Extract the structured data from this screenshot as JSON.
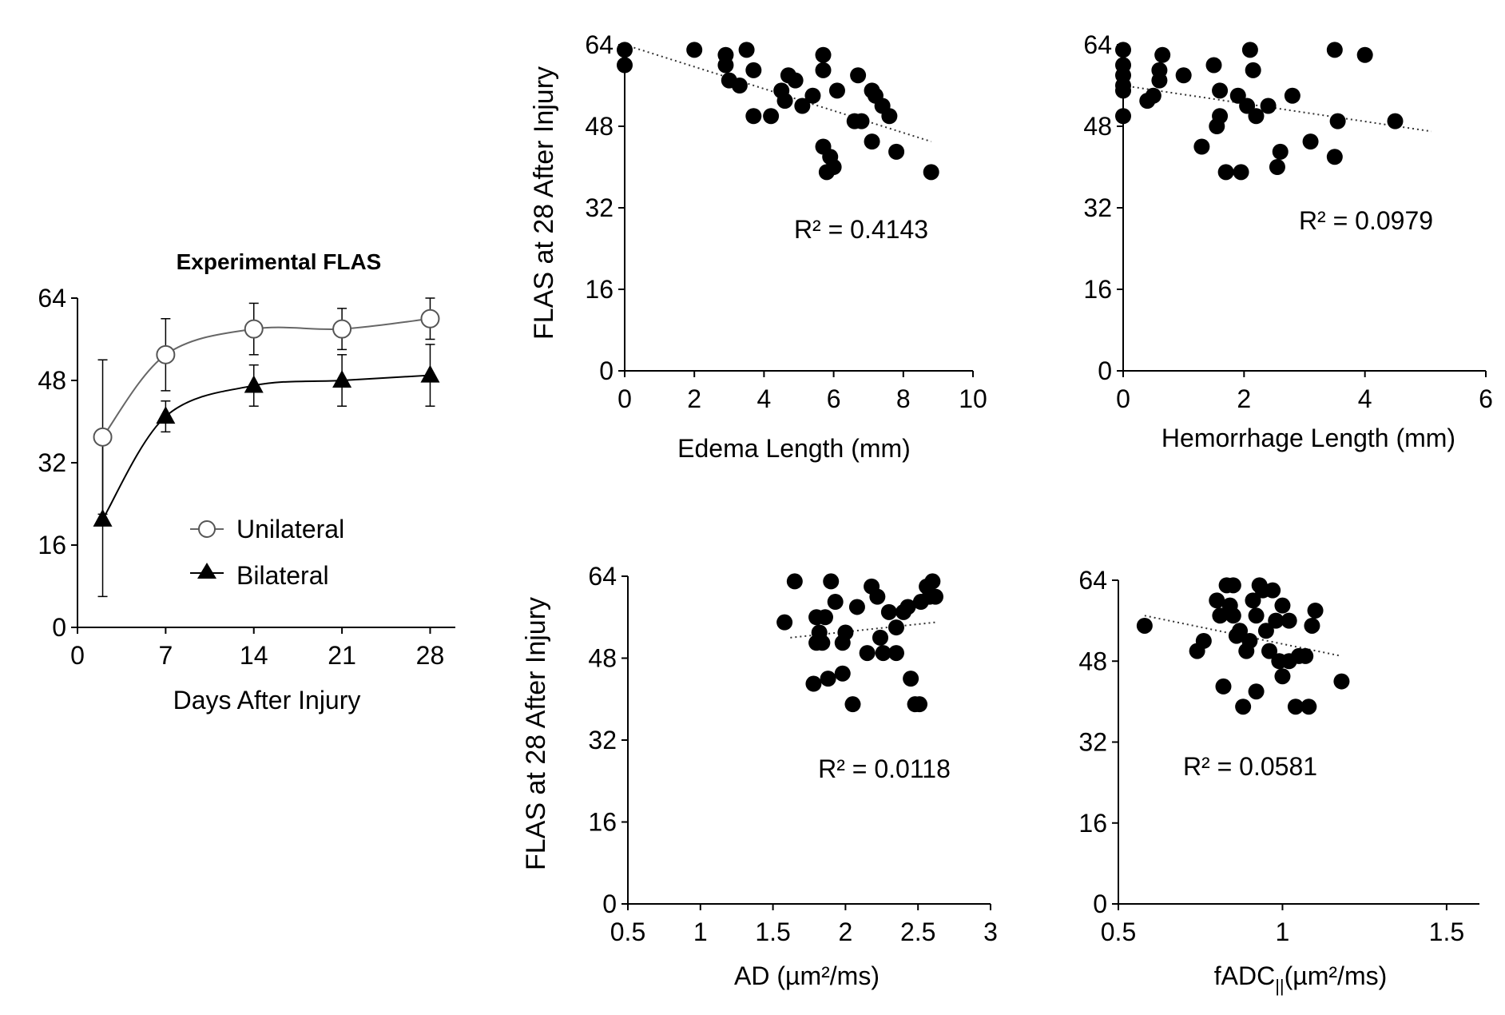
{
  "chart_data": [
    {
      "id": "flas",
      "type": "line",
      "title": "Experimental FLAS",
      "xlabel": "Days After Injury",
      "ylabel": "",
      "xlim": [
        0,
        30
      ],
      "ylim": [
        0,
        64
      ],
      "xticks": [
        0,
        7,
        14,
        21,
        28
      ],
      "yticks": [
        0,
        16,
        32,
        48,
        64
      ],
      "series": [
        {
          "name": "Unilateral",
          "marker": "circle-open",
          "x": [
            2,
            7,
            14,
            21,
            28
          ],
          "values": [
            37,
            53,
            58,
            58,
            60
          ],
          "err_up": [
            15,
            7,
            5,
            4,
            4
          ],
          "err_down": [
            15,
            7,
            5,
            4,
            4
          ]
        },
        {
          "name": "Bilateral",
          "marker": "triangle-filled",
          "x": [
            2,
            7,
            14,
            21,
            28
          ],
          "values": [
            21,
            41,
            47,
            48,
            49
          ],
          "err_up": [
            15,
            3,
            4,
            5,
            6
          ],
          "err_down": [
            15,
            3,
            4,
            5,
            6
          ]
        }
      ]
    },
    {
      "id": "edema",
      "type": "scatter",
      "title": "",
      "xlabel": "Edema Length (mm)",
      "ylabel": "FLAS at 28 After Injury",
      "xlim": [
        0,
        10
      ],
      "ylim": [
        0,
        64
      ],
      "xticks": [
        0,
        2,
        4,
        6,
        8,
        10
      ],
      "yticks": [
        0,
        16,
        32,
        48,
        64
      ],
      "r2": "R² = 0.4143",
      "trendline": {
        "x": [
          0,
          8.8
        ],
        "y": [
          64,
          45
        ]
      },
      "points": [
        [
          0,
          63
        ],
        [
          0,
          60
        ],
        [
          2,
          63
        ],
        [
          2.9,
          62
        ],
        [
          2.9,
          60
        ],
        [
          3,
          57
        ],
        [
          3.3,
          56
        ],
        [
          3.5,
          63
        ],
        [
          3.7,
          59
        ],
        [
          3.7,
          50
        ],
        [
          4.2,
          50
        ],
        [
          4.5,
          55
        ],
        [
          4.6,
          53
        ],
        [
          4.7,
          58
        ],
        [
          4.9,
          57
        ],
        [
          5.1,
          52
        ],
        [
          5.4,
          54
        ],
        [
          5.7,
          62
        ],
        [
          5.7,
          59
        ],
        [
          5.7,
          44
        ],
        [
          5.8,
          39
        ],
        [
          5.9,
          42
        ],
        [
          6,
          40
        ],
        [
          6.1,
          55
        ],
        [
          6.6,
          49
        ],
        [
          6.7,
          58
        ],
        [
          6.8,
          49
        ],
        [
          7.1,
          45
        ],
        [
          7.1,
          55
        ],
        [
          7.2,
          54
        ],
        [
          7.4,
          52
        ],
        [
          7.6,
          50
        ],
        [
          7.8,
          43
        ],
        [
          8.8,
          39
        ]
      ]
    },
    {
      "id": "hemorrhage",
      "type": "scatter",
      "title": "",
      "xlabel": "Hemorrhage Length (mm)",
      "ylabel": "",
      "xlim": [
        0,
        6
      ],
      "ylim": [
        0,
        64
      ],
      "xticks": [
        0,
        2,
        4,
        6
      ],
      "yticks": [
        0,
        16,
        32,
        48,
        64
      ],
      "r2": "R² = 0.0979",
      "trendline": {
        "x": [
          0,
          5.1
        ],
        "y": [
          56,
          47
        ]
      },
      "points": [
        [
          0,
          63
        ],
        [
          0,
          60
        ],
        [
          0,
          58
        ],
        [
          0,
          56
        ],
        [
          0,
          55
        ],
        [
          0,
          50
        ],
        [
          0.4,
          53
        ],
        [
          0.5,
          54
        ],
        [
          0.6,
          57
        ],
        [
          0.6,
          59
        ],
        [
          0.65,
          62
        ],
        [
          1,
          58
        ],
        [
          1.3,
          44
        ],
        [
          1.5,
          60
        ],
        [
          1.55,
          48
        ],
        [
          1.6,
          55
        ],
        [
          1.6,
          50
        ],
        [
          1.7,
          39
        ],
        [
          1.9,
          54
        ],
        [
          1.95,
          39
        ],
        [
          2.05,
          52
        ],
        [
          2.1,
          63
        ],
        [
          2.15,
          59
        ],
        [
          2.2,
          50
        ],
        [
          2.4,
          52
        ],
        [
          2.55,
          40
        ],
        [
          2.6,
          43
        ],
        [
          2.8,
          54
        ],
        [
          3.1,
          45
        ],
        [
          3.5,
          63
        ],
        [
          3.5,
          42
        ],
        [
          3.55,
          49
        ],
        [
          4,
          62
        ],
        [
          4.5,
          49
        ]
      ]
    },
    {
      "id": "ad",
      "type": "scatter",
      "title": "",
      "xlabel": "AD (µm²/ms)",
      "ylabel": "FLAS at 28 After Injury",
      "xlim": [
        0.5,
        3
      ],
      "ylim": [
        0,
        64
      ],
      "xticks": [
        0.5,
        1,
        1.5,
        2,
        2.5,
        3
      ],
      "xtick_labels": [
        "0.5",
        "1",
        "1.5",
        "2",
        "2.5",
        "3"
      ],
      "yticks": [
        0,
        16,
        32,
        48,
        64
      ],
      "r2": "R² = 0.0118",
      "trendline": {
        "x": [
          1.62,
          2.62
        ],
        "y": [
          52,
          55
        ]
      },
      "points": [
        [
          1.58,
          55
        ],
        [
          1.65,
          63
        ],
        [
          1.78,
          43
        ],
        [
          1.8,
          56
        ],
        [
          1.8,
          51
        ],
        [
          1.82,
          53
        ],
        [
          1.84,
          51
        ],
        [
          1.86,
          56
        ],
        [
          1.88,
          44
        ],
        [
          1.9,
          63
        ],
        [
          1.93,
          59
        ],
        [
          1.98,
          45
        ],
        [
          1.98,
          51
        ],
        [
          2,
          53
        ],
        [
          2.05,
          39
        ],
        [
          2.08,
          58
        ],
        [
          2.15,
          49
        ],
        [
          2.18,
          62
        ],
        [
          2.22,
          60
        ],
        [
          2.24,
          52
        ],
        [
          2.26,
          49
        ],
        [
          2.3,
          57
        ],
        [
          2.35,
          49
        ],
        [
          2.35,
          54
        ],
        [
          2.4,
          57
        ],
        [
          2.43,
          58
        ],
        [
          2.45,
          44
        ],
        [
          2.48,
          39
        ],
        [
          2.51,
          39
        ],
        [
          2.52,
          59
        ],
        [
          2.56,
          62
        ],
        [
          2.6,
          63
        ],
        [
          2.62,
          60
        ],
        [
          2.58,
          60
        ]
      ]
    },
    {
      "id": "fadc",
      "type": "scatter",
      "title": "",
      "xlabel": "fADC||(µm²/ms)",
      "xlabel_main": "fADC",
      "xlabel_sub": "||",
      "xlabel_rest": "(µm²/ms)",
      "ylabel": "",
      "xlim": [
        0.5,
        1.6
      ],
      "ylim": [
        0,
        64
      ],
      "xticks": [
        0.5,
        1,
        1.5
      ],
      "xtick_labels": [
        "0.5",
        "1",
        "1.5"
      ],
      "yticks": [
        0,
        16,
        32,
        48,
        64
      ],
      "r2": "R² = 0.0581",
      "trendline": {
        "x": [
          0.58,
          1.18
        ],
        "y": [
          57,
          49
        ]
      },
      "points": [
        [
          0.58,
          55
        ],
        [
          0.74,
          50
        ],
        [
          0.76,
          52
        ],
        [
          0.8,
          60
        ],
        [
          0.81,
          57
        ],
        [
          0.82,
          43
        ],
        [
          0.83,
          63
        ],
        [
          0.84,
          59
        ],
        [
          0.85,
          63
        ],
        [
          0.85,
          57
        ],
        [
          0.86,
          53
        ],
        [
          0.87,
          54
        ],
        [
          0.88,
          39
        ],
        [
          0.89,
          50
        ],
        [
          0.9,
          52
        ],
        [
          0.91,
          60
        ],
        [
          0.92,
          57
        ],
        [
          0.92,
          42
        ],
        [
          0.93,
          63
        ],
        [
          0.94,
          62
        ],
        [
          0.95,
          54
        ],
        [
          0.96,
          50
        ],
        [
          0.97,
          62
        ],
        [
          0.98,
          56
        ],
        [
          0.99,
          48
        ],
        [
          1,
          45
        ],
        [
          1,
          59
        ],
        [
          1.02,
          48
        ],
        [
          1.02,
          56
        ],
        [
          1.04,
          39
        ],
        [
          1.05,
          49
        ],
        [
          1.07,
          49
        ],
        [
          1.08,
          39
        ],
        [
          1.09,
          55
        ],
        [
          1.1,
          58
        ],
        [
          1.18,
          44
        ]
      ]
    }
  ],
  "legend": {
    "unilateral_label": "Unilateral",
    "bilateral_label": "Bilateral"
  }
}
